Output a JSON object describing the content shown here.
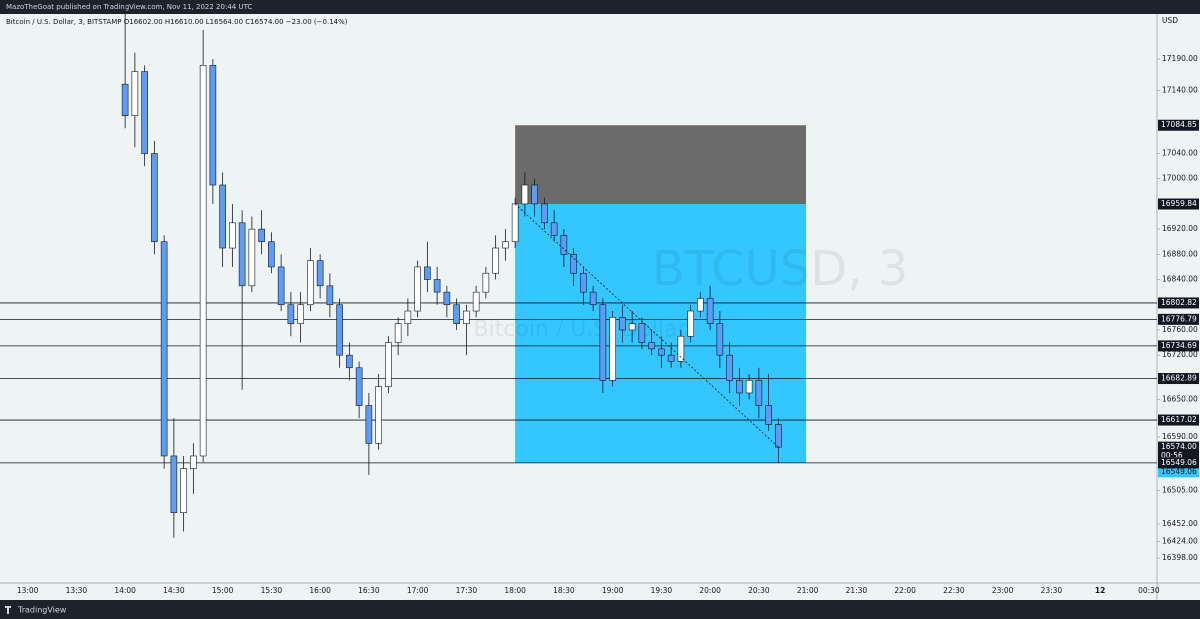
{
  "header": {
    "publisher": "MazoTheGoat published on TradingView.com, Nov 11, 2022 20:44 UTC"
  },
  "footer": {
    "brand": "TradingView"
  },
  "chart_data": {
    "type": "candlestick",
    "legend_text": "Bitcoin / U.S. Dollar, 3, BITSTAMP  O16602.00  H16610.00  L16564.00  C16574.00  −23.00 (−0.14%)",
    "watermark": "BTCUSD, 3",
    "watermark_sub": "Bitcoin / U.S. Dollar",
    "currency": "USD",
    "up_color": "#ffffff",
    "down_color": "#5b9cf6",
    "border_color": "#131722",
    "xlim": [
      "12:43",
      "00:35"
    ],
    "xticks": [
      "13:00",
      "13:30",
      "14:00",
      "14:30",
      "15:00",
      "15:30",
      "16:00",
      "16:30",
      "17:00",
      "17:30",
      "18:00",
      "18:30",
      "19:00",
      "19:30",
      "20:00",
      "20:30",
      "21:00",
      "21:30",
      "22:00",
      "22:30",
      "23:00",
      "23:30",
      {
        "value": "00:00",
        "label": "12"
      },
      "00:30"
    ],
    "ylim": [
      16358.4,
      17261.4
    ],
    "yticks": [
      {
        "value": 17190,
        "label": "17190.00"
      },
      {
        "value": 17140,
        "label": "17140.00"
      },
      {
        "value": 17040,
        "label": "17040.00"
      },
      {
        "value": 17000,
        "label": "17000.00"
      },
      {
        "value": 16920,
        "label": "16920.00"
      },
      {
        "value": 16880,
        "label": "16880.00"
      },
      {
        "value": 16840,
        "label": "16840.00"
      },
      {
        "value": 16760,
        "label": "16760.00"
      },
      {
        "value": 16720,
        "label": "16720.00"
      },
      {
        "value": 16650,
        "label": "16650.00"
      },
      {
        "value": 16590,
        "label": "16590.00"
      },
      {
        "value": 16505,
        "label": "16505.00"
      },
      {
        "value": 16452,
        "label": "16452.00"
      },
      {
        "value": 16424,
        "label": "16424.00"
      },
      {
        "value": 16398,
        "label": "16398.00"
      }
    ],
    "levels": [
      16802.82,
      16776.79,
      16734.69,
      16682.89,
      16617.02,
      16549.06
    ],
    "position": {
      "entry": 16959.84,
      "stop": 17084.85,
      "target": 16549.06,
      "start": "18:00",
      "end": "20:59",
      "stop_color": "#6b6b6b",
      "target_color": "#33c6ff"
    },
    "current_price": {
      "value": 16574,
      "label": "16574.00"
    },
    "countdown": "00:56",
    "candles": {
      "x": [
        "14:00",
        "14:06",
        "14:12",
        "14:18",
        "14:24",
        "14:30",
        "14:36",
        "14:42",
        "14:48",
        "14:54",
        "15:00",
        "15:06",
        "15:12",
        "15:18",
        "15:24",
        "15:30",
        "15:36",
        "15:42",
        "15:48",
        "15:54",
        "16:00",
        "16:06",
        "16:12",
        "16:18",
        "16:24",
        "16:30",
        "16:36",
        "16:42",
        "16:48",
        "16:54",
        "17:00",
        "17:06",
        "17:12",
        "17:18",
        "17:24",
        "17:30",
        "17:36",
        "17:42",
        "17:48",
        "17:54",
        "18:00",
        "18:06",
        "18:12",
        "18:18",
        "18:24",
        "18:30",
        "18:36",
        "18:42",
        "18:48",
        "18:54",
        "19:00",
        "19:06",
        "19:12",
        "19:18",
        "19:24",
        "19:30",
        "19:36",
        "19:42",
        "19:48",
        "19:54",
        "20:00",
        "20:06",
        "20:12",
        "20:18",
        "20:24",
        "20:30",
        "20:36",
        "20:42"
      ],
      "open": [
        17150,
        17100,
        17170,
        17040,
        16900,
        16560,
        16470,
        16540,
        16560,
        17180,
        16990,
        16890,
        16930,
        16830,
        16920,
        16900,
        16860,
        16800,
        16770,
        16800,
        16870,
        16830,
        16800,
        16720,
        16700,
        16640,
        16580,
        16670,
        16740,
        16770,
        16790,
        16860,
        16840,
        16820,
        16800,
        16770,
        16790,
        16820,
        16850,
        16890,
        16900,
        16960,
        16990,
        16960,
        16930,
        16910,
        16880,
        16850,
        16820,
        16800,
        16680,
        16780,
        16760,
        16770,
        16740,
        16730,
        16720,
        16710,
        16750,
        16790,
        16810,
        16770,
        16720,
        16680,
        16660,
        16680,
        16640,
        16610
      ],
      "high": [
        17283,
        17200,
        17180,
        17060,
        16910,
        16620,
        16560,
        16580,
        17236,
        17190,
        17010,
        16960,
        16950,
        16940,
        16950,
        16915,
        16880,
        16820,
        16820,
        16890,
        16880,
        16850,
        16810,
        16740,
        16710,
        16660,
        16690,
        16750,
        16780,
        16810,
        16870,
        16900,
        16860,
        16830,
        16810,
        16800,
        16830,
        16860,
        16910,
        16920,
        16970,
        17010,
        17000,
        16970,
        16950,
        16920,
        16890,
        16860,
        16830,
        16810,
        16790,
        16800,
        16790,
        16780,
        16760,
        16750,
        16740,
        16760,
        16800,
        16820,
        16830,
        16790,
        16740,
        16700,
        16690,
        16700,
        16690,
        16620
      ],
      "low": [
        17080,
        17050,
        17020,
        16880,
        16540,
        16430,
        16440,
        16500,
        16550,
        16960,
        16860,
        16860,
        16665,
        16820,
        16880,
        16850,
        16790,
        16750,
        16740,
        16790,
        16810,
        16780,
        16700,
        16680,
        16620,
        16530,
        16570,
        16660,
        16720,
        16750,
        16780,
        16820,
        16800,
        16780,
        16760,
        16720,
        16780,
        16810,
        16840,
        16870,
        16890,
        16940,
        16940,
        16920,
        16900,
        16860,
        16830,
        16800,
        16790,
        16660,
        16670,
        16740,
        16740,
        16730,
        16720,
        16700,
        16700,
        16700,
        16740,
        16780,
        16760,
        16700,
        16660,
        16640,
        16650,
        16620,
        16600,
        16549
      ],
      "close": [
        17100,
        17170,
        17040,
        16900,
        16560,
        16470,
        16540,
        16560,
        17180,
        16990,
        16890,
        16930,
        16830,
        16920,
        16900,
        16860,
        16800,
        16770,
        16800,
        16870,
        16830,
        16800,
        16720,
        16700,
        16640,
        16580,
        16670,
        16740,
        16770,
        16790,
        16860,
        16840,
        16820,
        16800,
        16770,
        16790,
        16820,
        16850,
        16890,
        16900,
        16960,
        16990,
        16960,
        16930,
        16910,
        16880,
        16850,
        16820,
        16800,
        16680,
        16780,
        16760,
        16770,
        16740,
        16730,
        16720,
        16710,
        16750,
        16790,
        16810,
        16770,
        16720,
        16680,
        16660,
        16680,
        16640,
        16610,
        16574
      ]
    }
  }
}
